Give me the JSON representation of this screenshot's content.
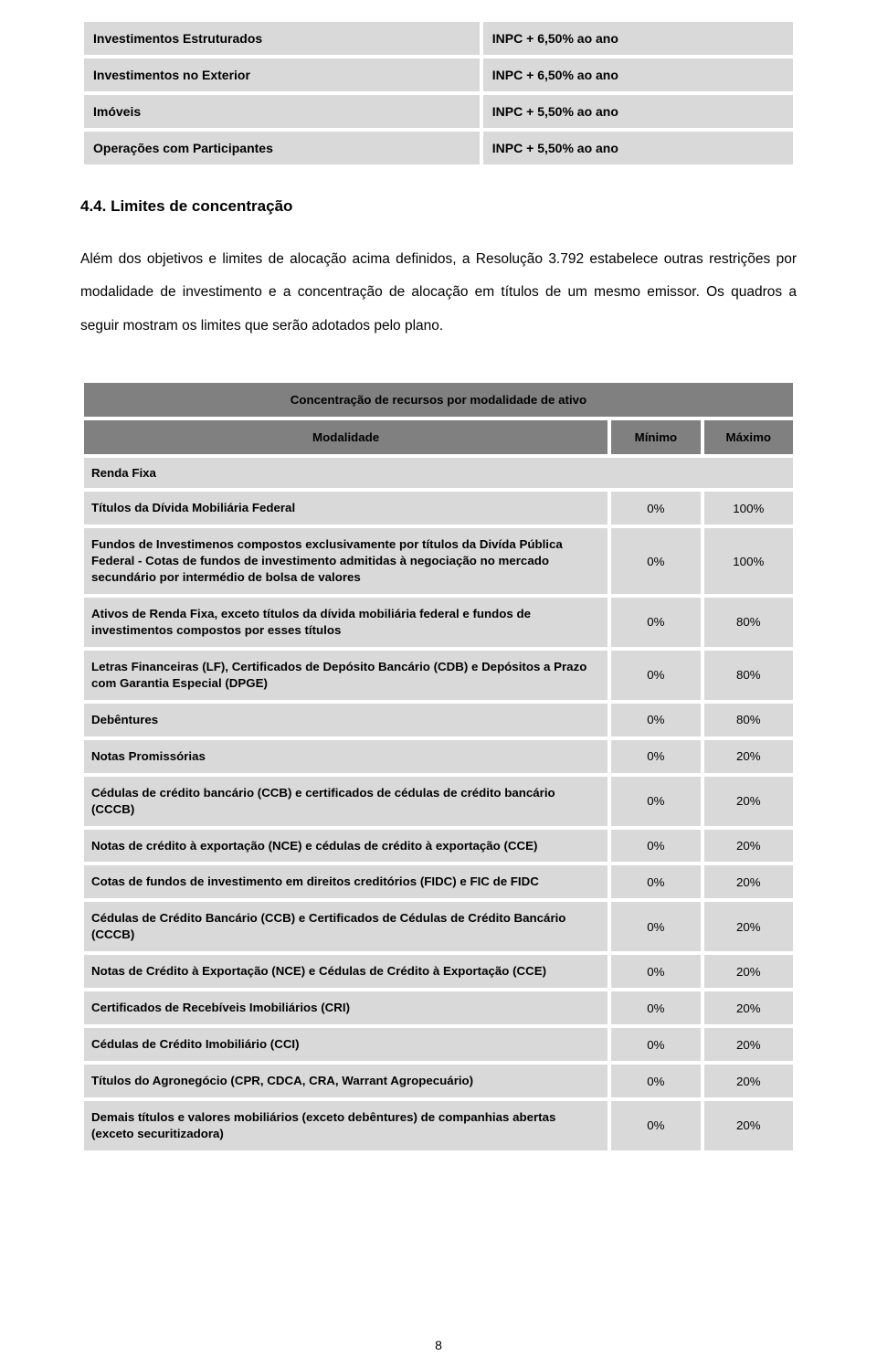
{
  "topTable": {
    "rows": [
      {
        "label": "Investimentos Estruturados",
        "value": "INPC + 6,50% ao ano"
      },
      {
        "label": "Investimentos no Exterior",
        "value": "INPC + 6,50% ao ano"
      },
      {
        "label": "Imóveis",
        "value": "INPC + 5,50% ao ano"
      },
      {
        "label": "Operações com Participantes",
        "value": "INPC + 5,50% ao ano"
      }
    ]
  },
  "section": {
    "heading": "4.4. Limites de concentração",
    "body": "Além dos objetivos e limites de alocação acima definidos, a Resolução 3.792 estabelece outras restrições por modalidade de investimento e a concentração de alocação em títulos de um mesmo emissor. Os quadros a seguir mostram os limites que serão adotados pelo plano."
  },
  "mainTable": {
    "title": "Concentração de recursos por modalidade de ativo",
    "headers": {
      "modalidade": "Modalidade",
      "min": "Mínimo",
      "max": "Máximo"
    },
    "sectionLabel": "Renda Fixa",
    "rows": [
      {
        "label": "Títulos da Dívida Mobiliária Federal",
        "min": "0%",
        "max": "100%"
      },
      {
        "label": "Fundos de Investimenos compostos exclusivamente por títulos da Divída Pública Federal - Cotas de fundos de investimento admitidas à negociação no mercado secundário por intermédio de bolsa de valores",
        "min": "0%",
        "max": "100%"
      },
      {
        "label": "Ativos de Renda Fixa, exceto títulos da dívida mobiliária federal e fundos de investimentos compostos por esses títulos",
        "min": "0%",
        "max": "80%"
      },
      {
        "label": "Letras Financeiras (LF), Certificados de Depósito Bancário (CDB) e Depósitos a Prazo com Garantia Especial (DPGE)",
        "min": "0%",
        "max": "80%"
      },
      {
        "label": "Debêntures",
        "min": "0%",
        "max": "80%"
      },
      {
        "label": "Notas Promissórias",
        "min": "0%",
        "max": "20%"
      },
      {
        "label": "Cédulas de crédito bancário (CCB) e certificados de cédulas de crédito bancário (CCCB)",
        "min": "0%",
        "max": "20%"
      },
      {
        "label": "Notas de crédito à exportação (NCE) e cédulas de crédito à exportação (CCE)",
        "min": "0%",
        "max": "20%"
      },
      {
        "label": "Cotas de fundos de investimento em direitos creditórios (FIDC) e FIC de FIDC",
        "min": "0%",
        "max": "20%"
      },
      {
        "label": "Cédulas de Crédito Bancário (CCB) e Certificados de Cédulas de Crédito Bancário (CCCB)",
        "min": "0%",
        "max": "20%"
      },
      {
        "label": "Notas de Crédito à Exportação (NCE) e Cédulas de Crédito à Exportação (CCE)",
        "min": "0%",
        "max": "20%"
      },
      {
        "label": "Certificados de Recebíveis Imobiliários (CRI)",
        "min": "0%",
        "max": "20%"
      },
      {
        "label": "Cédulas de Crédito Imobiliário (CCI)",
        "min": "0%",
        "max": "20%"
      },
      {
        "label": "Títulos do Agronegócio (CPR, CDCA, CRA, Warrant Agropecuário)",
        "min": "0%",
        "max": "20%"
      },
      {
        "label": "Demais títulos e valores mobiliários (exceto debêntures) de companhias abertas (exceto securitizadora)",
        "min": "0%",
        "max": "20%"
      }
    ]
  },
  "pageNumber": "8"
}
